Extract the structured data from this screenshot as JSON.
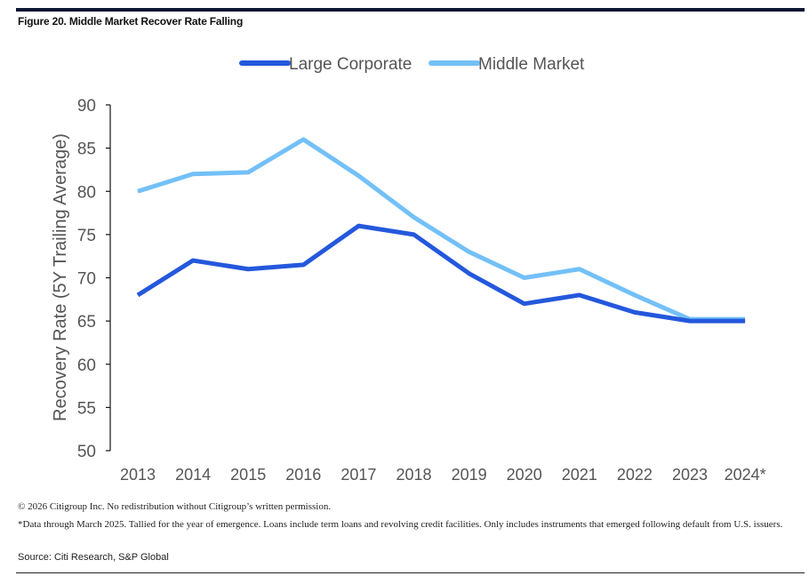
{
  "figure_title": "Figure 20. Middle Market Recover Rate Falling",
  "chart_data": {
    "type": "line",
    "title": "Figure 20. Middle Market Recover Rate Falling",
    "xlabel": "",
    "ylabel": "Recovery Rate (5Y Trailing Average)",
    "ylim": [
      50,
      90
    ],
    "yticks": [
      50,
      55,
      60,
      65,
      70,
      75,
      80,
      85,
      90
    ],
    "categories": [
      "2013",
      "2014",
      "2015",
      "2016",
      "2017",
      "2018",
      "2019",
      "2020",
      "2021",
      "2022",
      "2023",
      "2024*"
    ],
    "legend_position": "top-center",
    "grid": false,
    "series": [
      {
        "name": "Large Corporate",
        "color": "#2458dc",
        "values": [
          68,
          72,
          71,
          71.5,
          76,
          75,
          70.5,
          67,
          68,
          66,
          65,
          65
        ]
      },
      {
        "name": "Middle Market",
        "color": "#73c0f8",
        "values": [
          80,
          82,
          82.2,
          86,
          81.8,
          77,
          73,
          70,
          71,
          68,
          65.2,
          65.2
        ]
      }
    ]
  },
  "footer": {
    "copyright": "© 2026 Citigroup Inc. No redistribution without Citigroup’s written permission.",
    "note": "*Data through March 2025. Tallied for the year of emergence. Loans include term loans and revolving credit facilities. Only includes instruments that emerged following default from U.S. issuers.",
    "source": "Source: Citi Research, S&P Global"
  }
}
